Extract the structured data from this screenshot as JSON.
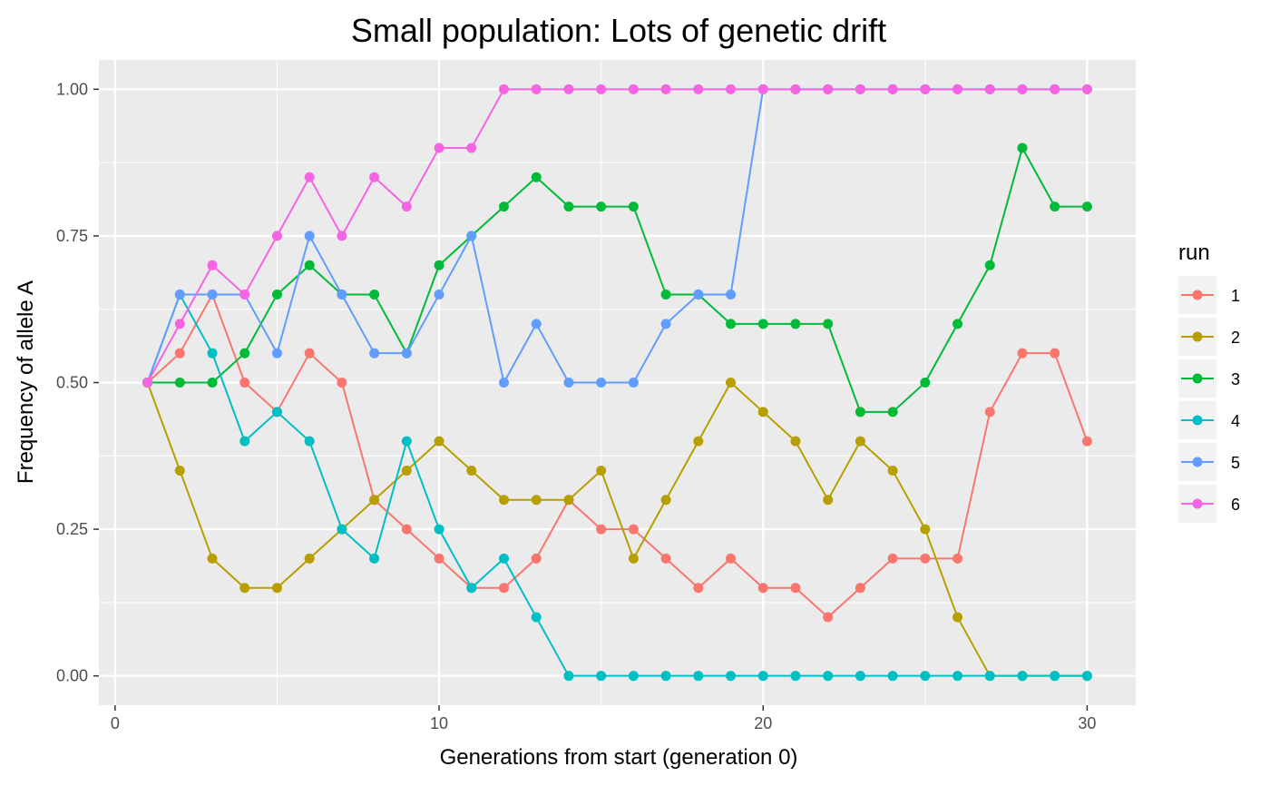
{
  "chart_data": {
    "type": "line",
    "title": "Small population: Lots of genetic drift",
    "xlabel": "Generations from start (generation 0)",
    "ylabel": "Frequency of allele A",
    "xlim": [
      -0.5,
      31.5
    ],
    "ylim": [
      -0.05,
      1.05
    ],
    "x_ticks": [
      0,
      10,
      20,
      30
    ],
    "x_tick_labels": [
      "0",
      "10",
      "20",
      "30"
    ],
    "x_minor_ticks": [
      5,
      15,
      25
    ],
    "y_ticks": [
      0,
      0.25,
      0.5,
      0.75,
      1
    ],
    "y_tick_labels": [
      "0.00",
      "0.25",
      "0.50",
      "0.75",
      "1.00"
    ],
    "y_minor_ticks": [
      0.125,
      0.375,
      0.625,
      0.875
    ],
    "grid": true,
    "legend": {
      "title": "run",
      "position": "right"
    },
    "x": [
      1,
      2,
      3,
      4,
      5,
      6,
      7,
      8,
      9,
      10,
      11,
      12,
      13,
      14,
      15,
      16,
      17,
      18,
      19,
      20,
      21,
      22,
      23,
      24,
      25,
      26,
      27,
      28,
      29,
      30
    ],
    "series": [
      {
        "name": "1",
        "color": "#F8766D",
        "values": [
          0.5,
          0.55,
          0.65,
          0.5,
          0.45,
          0.55,
          0.5,
          0.3,
          0.25,
          0.2,
          0.15,
          0.15,
          0.2,
          0.3,
          0.25,
          0.25,
          0.2,
          0.15,
          0.2,
          0.15,
          0.15,
          0.1,
          0.15,
          0.2,
          0.2,
          0.2,
          0.45,
          0.55,
          0.55,
          0.4
        ]
      },
      {
        "name": "2",
        "color": "#B79F00",
        "values": [
          0.5,
          0.35,
          0.2,
          0.15,
          0.15,
          0.2,
          0.25,
          0.3,
          0.35,
          0.4,
          0.35,
          0.3,
          0.3,
          0.3,
          0.35,
          0.2,
          0.3,
          0.4,
          0.5,
          0.45,
          0.4,
          0.3,
          0.4,
          0.35,
          0.25,
          0.1,
          0,
          0,
          0,
          0
        ]
      },
      {
        "name": "3",
        "color": "#00BA38",
        "values": [
          0.5,
          0.5,
          0.5,
          0.55,
          0.65,
          0.7,
          0.65,
          0.65,
          0.55,
          0.7,
          0.75,
          0.8,
          0.85,
          0.8,
          0.8,
          0.8,
          0.65,
          0.65,
          0.6,
          0.6,
          0.6,
          0.6,
          0.45,
          0.45,
          0.5,
          0.6,
          0.7,
          0.9,
          0.8,
          0.8
        ]
      },
      {
        "name": "4",
        "color": "#00BFC4",
        "values": [
          0.5,
          0.65,
          0.55,
          0.4,
          0.45,
          0.4,
          0.25,
          0.2,
          0.4,
          0.25,
          0.15,
          0.2,
          0.1,
          0,
          0,
          0,
          0,
          0,
          0,
          0,
          0,
          0,
          0,
          0,
          0,
          0,
          0,
          0,
          0,
          0
        ]
      },
      {
        "name": "5",
        "color": "#619CFF",
        "values": [
          0.5,
          0.65,
          0.65,
          0.65,
          0.55,
          0.75,
          0.65,
          0.55,
          0.55,
          0.65,
          0.75,
          0.5,
          0.6,
          0.5,
          0.5,
          0.5,
          0.6,
          0.65,
          0.65,
          1,
          1,
          1,
          1,
          1,
          1,
          1,
          1,
          1,
          1,
          1
        ]
      },
      {
        "name": "6",
        "color": "#F564E3",
        "values": [
          0.5,
          0.6,
          0.7,
          0.65,
          0.75,
          0.85,
          0.75,
          0.85,
          0.8,
          0.9,
          0.9,
          1,
          1,
          1,
          1,
          1,
          1,
          1,
          1,
          1,
          1,
          1,
          1,
          1,
          1,
          1,
          1,
          1,
          1,
          1
        ]
      }
    ]
  }
}
